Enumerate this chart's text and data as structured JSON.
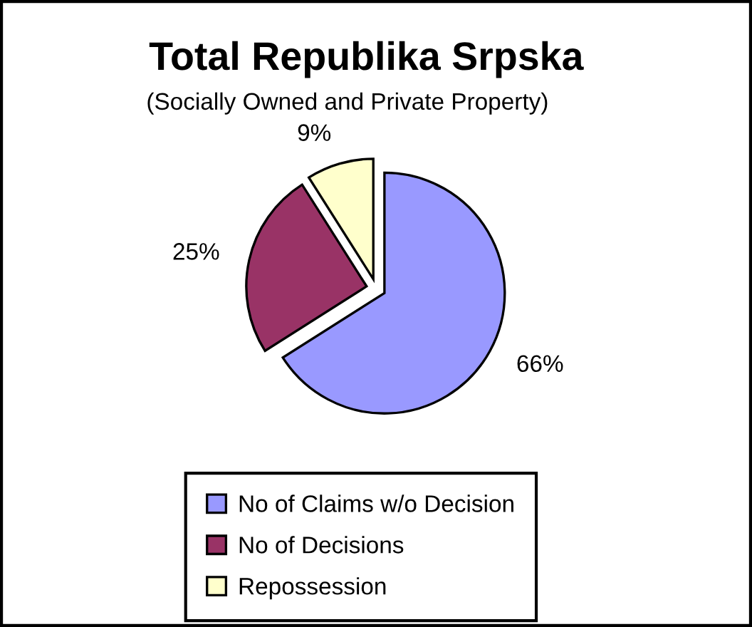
{
  "chart_data": {
    "type": "pie",
    "title": "Total Republika Srpska",
    "subtitle": "(Socially Owned and Private Property)",
    "categories": [
      "No of Claims w/o Decision",
      "No of Decisions",
      "Repossession"
    ],
    "values": [
      66,
      25,
      9
    ],
    "colors": [
      "#9999ff",
      "#993366",
      "#ffffcc"
    ],
    "value_labels": [
      "66%",
      "25%",
      "9%"
    ],
    "legend": "bottom"
  }
}
